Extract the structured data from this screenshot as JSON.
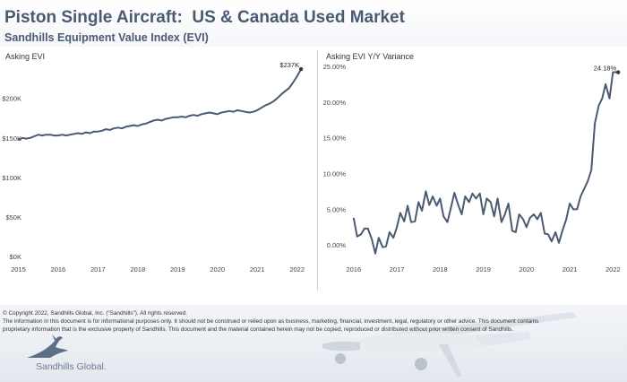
{
  "header": {
    "title": "Piston Single Aircraft:  US & Canada Used Market",
    "subtitle": "Sandhills Equipment Value Index (EVI)"
  },
  "chart_data": [
    {
      "type": "line",
      "title": "Asking EVI",
      "x_range": [
        2014.9,
        2022.3
      ],
      "ylim": [
        0,
        245
      ],
      "x_ticks": [
        "2015",
        "2016",
        "2017",
        "2018",
        "2019",
        "2020",
        "2021",
        "2022"
      ],
      "y_ticks": [
        "$0K",
        "$50K",
        "$100K",
        "$150K",
        "$200K"
      ],
      "y_tick_values": [
        0,
        50,
        100,
        150,
        200
      ],
      "annotation": "$237K",
      "grid": false,
      "x": [
        2015.0,
        2015.1,
        2015.2,
        2015.3,
        2015.4,
        2015.5,
        2015.6,
        2015.7,
        2015.8,
        2015.9,
        2016.0,
        2016.1,
        2016.2,
        2016.3,
        2016.4,
        2016.5,
        2016.6,
        2016.7,
        2016.8,
        2016.9,
        2017.0,
        2017.1,
        2017.2,
        2017.3,
        2017.4,
        2017.5,
        2017.6,
        2017.7,
        2017.8,
        2017.9,
        2018.0,
        2018.1,
        2018.2,
        2018.3,
        2018.4,
        2018.5,
        2018.6,
        2018.7,
        2018.8,
        2018.9,
        2019.0,
        2019.1,
        2019.2,
        2019.3,
        2019.4,
        2019.5,
        2019.6,
        2019.7,
        2019.8,
        2019.9,
        2020.0,
        2020.1,
        2020.2,
        2020.3,
        2020.4,
        2020.5,
        2020.6,
        2020.7,
        2020.8,
        2020.9,
        2021.0,
        2021.1,
        2021.2,
        2021.3,
        2021.4,
        2021.5,
        2021.6,
        2021.7,
        2021.8,
        2021.9,
        2022.0,
        2022.1
      ],
      "values": [
        147,
        150,
        149,
        150,
        152,
        154,
        153,
        154,
        154,
        153,
        153,
        154,
        153,
        154,
        155,
        156,
        155,
        157,
        156,
        158,
        158,
        159,
        161,
        160,
        162,
        163,
        162,
        164,
        165,
        166,
        165,
        167,
        168,
        170,
        172,
        173,
        172,
        174,
        175,
        176,
        176,
        177,
        176,
        178,
        179,
        178,
        180,
        181,
        182,
        181,
        180,
        182,
        183,
        184,
        183,
        185,
        184,
        183,
        182,
        183,
        185,
        188,
        191,
        193,
        196,
        200,
        205,
        209,
        213,
        220,
        228,
        237
      ]
    },
    {
      "type": "line",
      "title": "Asking EVI Y/Y Variance",
      "x_range": [
        2015.9,
        2022.2
      ],
      "ylim": [
        -0.6,
        25.5
      ],
      "x_ticks": [
        "2016",
        "2017",
        "2018",
        "2019",
        "2020",
        "2021",
        "2022"
      ],
      "y_ticks": [
        "0.00%",
        "5.00%",
        "10.00%",
        "15.00%",
        "20.00%",
        "25.00%"
      ],
      "y_tick_values": [
        0,
        5,
        10,
        15,
        20,
        25
      ],
      "annotation": "24.18%",
      "grid": false,
      "x": [
        2016.0,
        2016.08,
        2016.17,
        2016.25,
        2016.33,
        2016.42,
        2016.5,
        2016.58,
        2016.67,
        2016.75,
        2016.83,
        2016.92,
        2017.0,
        2017.08,
        2017.17,
        2017.25,
        2017.33,
        2017.42,
        2017.5,
        2017.58,
        2017.67,
        2017.75,
        2017.83,
        2017.92,
        2018.0,
        2018.08,
        2018.17,
        2018.25,
        2018.33,
        2018.42,
        2018.5,
        2018.58,
        2018.67,
        2018.75,
        2018.83,
        2018.92,
        2019.0,
        2019.08,
        2019.17,
        2019.25,
        2019.33,
        2019.42,
        2019.5,
        2019.58,
        2019.67,
        2019.75,
        2019.83,
        2019.92,
        2020.0,
        2020.08,
        2020.17,
        2020.25,
        2020.33,
        2020.42,
        2020.5,
        2020.58,
        2020.67,
        2020.75,
        2020.83,
        2020.92,
        2021.0,
        2021.08,
        2021.17,
        2021.25,
        2021.33,
        2021.42,
        2021.5,
        2021.58,
        2021.67,
        2021.75,
        2021.83,
        2021.92,
        2022.0,
        2022.08,
        2022.12
      ],
      "values": [
        3.8,
        1.2,
        1.5,
        2.3,
        2.3,
        0.8,
        -1.2,
        1.0,
        -0.3,
        -0.2,
        1.8,
        1.0,
        2.5,
        4.5,
        3.3,
        5.5,
        3.2,
        3.3,
        6.0,
        4.8,
        7.5,
        5.6,
        6.8,
        5.5,
        6.5,
        4.0,
        3.2,
        5.2,
        7.3,
        5.6,
        4.3,
        6.8,
        6.0,
        7.2,
        6.5,
        7.2,
        4.3,
        6.5,
        6.0,
        4.0,
        6.5,
        3.2,
        4.3,
        5.8,
        2.0,
        1.8,
        4.3,
        3.6,
        2.5,
        3.8,
        4.3,
        3.6,
        4.5,
        1.6,
        1.5,
        0.5,
        1.8,
        0.3,
        2.0,
        3.6,
        5.8,
        5.0,
        5.0,
        6.8,
        7.8,
        9.0,
        10.5,
        17.0,
        19.5,
        20.5,
        22.5,
        20.5,
        24.18,
        24.18,
        24.18
      ]
    }
  ]
}
